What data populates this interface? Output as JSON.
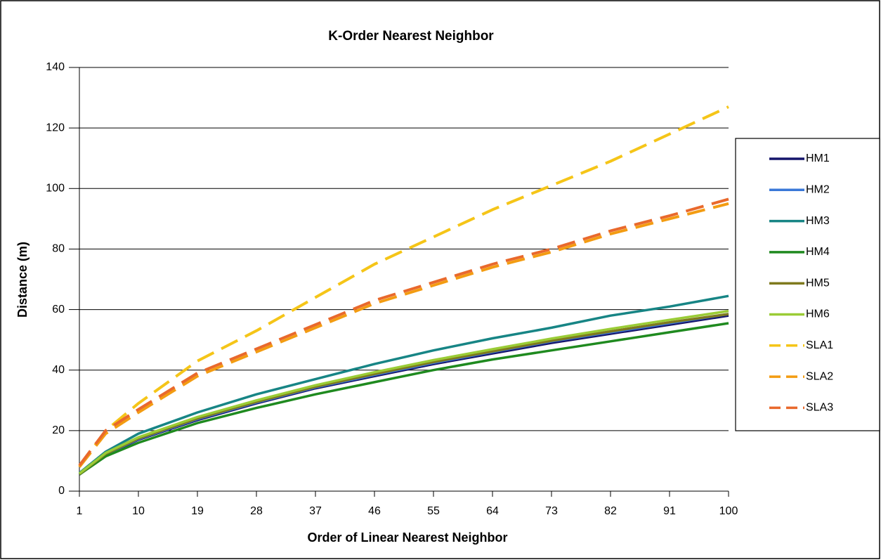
{
  "chart_data": {
    "type": "line",
    "title": "K-Order Nearest Neighbor",
    "x_label": "Order of Linear Nearest Neighbor",
    "y_label": "Distance (m)",
    "x": [
      1,
      5,
      10,
      19,
      28,
      37,
      46,
      55,
      64,
      73,
      82,
      91,
      100
    ],
    "xlim": [
      1,
      100
    ],
    "xticks": [
      1,
      10,
      19,
      28,
      37,
      46,
      55,
      64,
      73,
      82,
      91,
      100
    ],
    "ylim": [
      0,
      140
    ],
    "yticks": [
      0,
      20,
      40,
      60,
      80,
      100,
      120,
      140
    ],
    "grid": true,
    "legend": "right",
    "series": [
      {
        "name": "HM1",
        "color": "#15156b",
        "style": "solid",
        "values": [
          5.5,
          12,
          17,
          23.5,
          29,
          34,
          38,
          42,
          45.5,
          49,
          52,
          55,
          58
        ]
      },
      {
        "name": "HM2",
        "color": "#3a78d8",
        "style": "solid",
        "values": [
          5.6,
          12.2,
          17.2,
          23.8,
          29.3,
          34.3,
          38.4,
          42.4,
          46,
          49.5,
          52.5,
          55.5,
          58.5
        ]
      },
      {
        "name": "HM3",
        "color": "#178585",
        "style": "solid",
        "values": [
          6,
          13,
          19,
          26,
          32,
          37,
          42,
          46.5,
          50.5,
          54,
          58,
          61,
          64.5
        ]
      },
      {
        "name": "HM4",
        "color": "#1f8a1f",
        "style": "solid",
        "values": [
          5.5,
          11.5,
          16,
          22.5,
          27.5,
          32,
          36,
          40,
          43.5,
          46.5,
          49.5,
          52.5,
          55.5
        ]
      },
      {
        "name": "HM5",
        "color": "#7f7a1e",
        "style": "solid",
        "values": [
          5.6,
          12.3,
          17.4,
          24,
          29.5,
          34.5,
          38.7,
          42.7,
          46.2,
          49.7,
          52.8,
          55.8,
          58.5
        ]
      },
      {
        "name": "HM6",
        "color": "#9acc36",
        "style": "solid",
        "values": [
          5.8,
          12.6,
          17.8,
          24.5,
          30,
          35,
          39.3,
          43.3,
          46.9,
          50.4,
          53.6,
          56.6,
          59.5
        ]
      },
      {
        "name": "SLA1",
        "color": "#f5c518",
        "style": "dashed",
        "values": [
          8,
          20,
          29,
          43,
          53,
          64,
          75,
          84,
          93,
          101,
          109,
          118,
          127
        ]
      },
      {
        "name": "SLA2",
        "color": "#f39c12",
        "style": "dashed",
        "values": [
          8,
          19,
          26,
          38,
          46,
          54,
          62,
          68,
          74,
          79,
          85,
          90,
          95
        ]
      },
      {
        "name": "SLA3",
        "color": "#e9692c",
        "style": "dashed",
        "values": [
          8.5,
          20,
          27,
          39,
          47,
          55,
          63,
          69,
          75,
          80,
          86,
          91,
          96.5
        ]
      }
    ]
  }
}
